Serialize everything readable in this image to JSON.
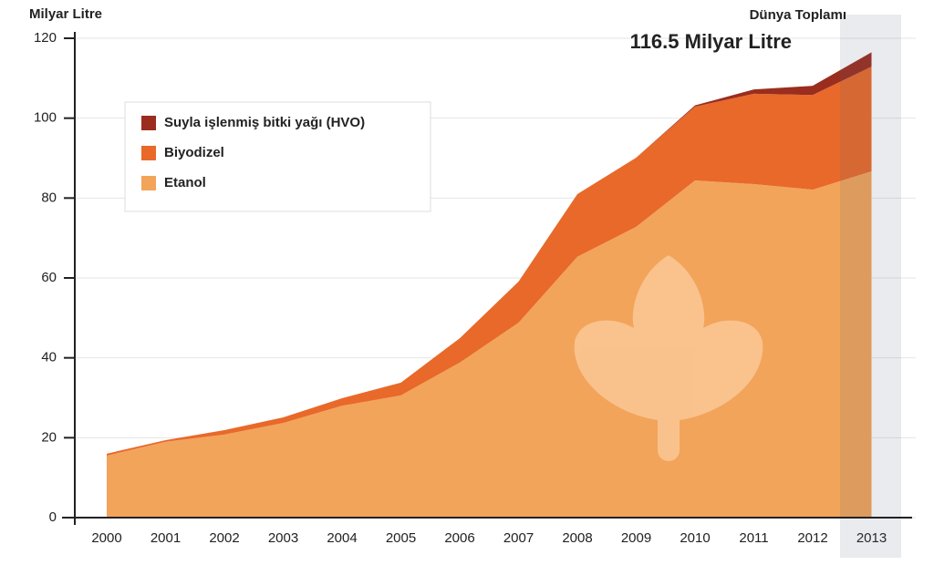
{
  "chart_data": {
    "type": "stacked_area",
    "y_label": "Milyar Litre",
    "annotations": [
      "Dünya Toplamı",
      "116.5 Milyar Litre"
    ],
    "categories": [
      "2000",
      "2001",
      "2002",
      "2003",
      "2004",
      "2005",
      "2006",
      "2007",
      "2008",
      "2009",
      "2010",
      "2011",
      "2012",
      "2013"
    ],
    "series": [
      {
        "name": "Etanol",
        "color": "#f2a45a",
        "values": [
          15.5,
          19,
          20.8,
          23.7,
          28,
          30.6,
          38.8,
          48.8,
          65.3,
          72.8,
          84.4,
          83.5,
          82.1,
          86.7
        ]
      },
      {
        "name": "Biyodizel",
        "color": "#e8692a",
        "values": [
          0.5,
          0.4,
          1.1,
          1.4,
          1.9,
          3.2,
          6.1,
          10.3,
          15.7,
          17.3,
          18.5,
          22.6,
          23.7,
          26.2
        ]
      },
      {
        "name": "Suyla işlenmiş bitki yağı (HVO)",
        "color": "#9b2d1e",
        "values": [
          0,
          0,
          0,
          0,
          0,
          0,
          0,
          0,
          0,
          0,
          0.3,
          1.1,
          2.3,
          3.6
        ]
      }
    ],
    "ylim": [
      0,
      120
    ],
    "yticks": [
      0,
      20,
      40,
      60,
      80,
      100,
      120
    ],
    "grid": true
  }
}
